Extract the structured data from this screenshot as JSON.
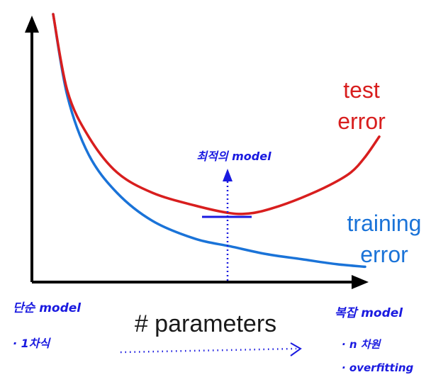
{
  "chart_data": {
    "type": "line",
    "title": "",
    "xlabel": "# parameters",
    "ylabel": "",
    "series": [
      {
        "name": "test error",
        "color": "#d81e1e",
        "x": [
          0.06,
          0.1,
          0.16,
          0.24,
          0.34,
          0.46,
          0.56,
          0.62,
          0.68,
          0.76,
          0.84,
          0.9,
          0.94,
          0.98
        ],
        "y": [
          1.0,
          0.7,
          0.52,
          0.38,
          0.3,
          0.25,
          0.22,
          0.22,
          0.24,
          0.28,
          0.33,
          0.38,
          0.44,
          0.52
        ]
      },
      {
        "name": "training error",
        "color": "#1a73d8",
        "x": [
          0.06,
          0.1,
          0.16,
          0.24,
          0.34,
          0.46,
          0.56,
          0.66,
          0.76,
          0.86,
          0.94
        ],
        "y": [
          1.0,
          0.68,
          0.45,
          0.3,
          0.19,
          0.12,
          0.09,
          0.06,
          0.04,
          0.02,
          0.01
        ]
      }
    ],
    "annotations": [
      {
        "id": "optimal",
        "text": "최적의 model",
        "color": "#1a1ae0"
      },
      {
        "id": "simple",
        "text": "단순 model",
        "color": "#1a1ae0"
      },
      {
        "id": "simple_note",
        "text": "· 1차식",
        "color": "#1a1ae0"
      },
      {
        "id": "complex",
        "text": "복잡 model",
        "color": "#1a1ae0"
      },
      {
        "id": "complex_note1",
        "text": "· n 차원",
        "color": "#1a1ae0"
      },
      {
        "id": "complex_note2",
        "text": "· overfitting",
        "color": "#1a1ae0"
      }
    ],
    "series_labels": {
      "test": [
        "test",
        "error"
      ],
      "training": [
        "training",
        "error"
      ]
    },
    "xlim": [
      0,
      1
    ],
    "ylim": [
      0,
      1
    ],
    "grid": false,
    "legend": "inline"
  }
}
